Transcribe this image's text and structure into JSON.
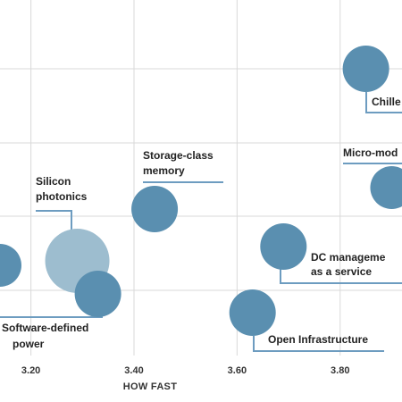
{
  "chart_data": {
    "type": "scatter",
    "xlabel": "HOW FAST",
    "xlim": [
      3.14,
      3.92
    ],
    "x_ticks": [
      "3.20",
      "3.40",
      "3.60",
      "3.80"
    ],
    "grid": true,
    "colors": {
      "bubble": "#5a8fb0",
      "bubble_light": "#9dbdcf",
      "grid": "#d9d9d9",
      "leader": "#6d9cc0"
    },
    "points": [
      {
        "x": 3.14,
        "label": ""
      },
      {
        "x": 3.29,
        "label": "Silicon photonics"
      },
      {
        "x": 3.33,
        "label": "Software-defined power"
      },
      {
        "x": 3.44,
        "label": "Storage-class memory"
      },
      {
        "x": 3.63,
        "label": "Open Infrastructure"
      },
      {
        "x": 3.69,
        "label": "DC management as a service"
      },
      {
        "x": 3.85,
        "label": "Chille"
      },
      {
        "x": 3.9,
        "label": "Micro-mod"
      }
    ]
  }
}
